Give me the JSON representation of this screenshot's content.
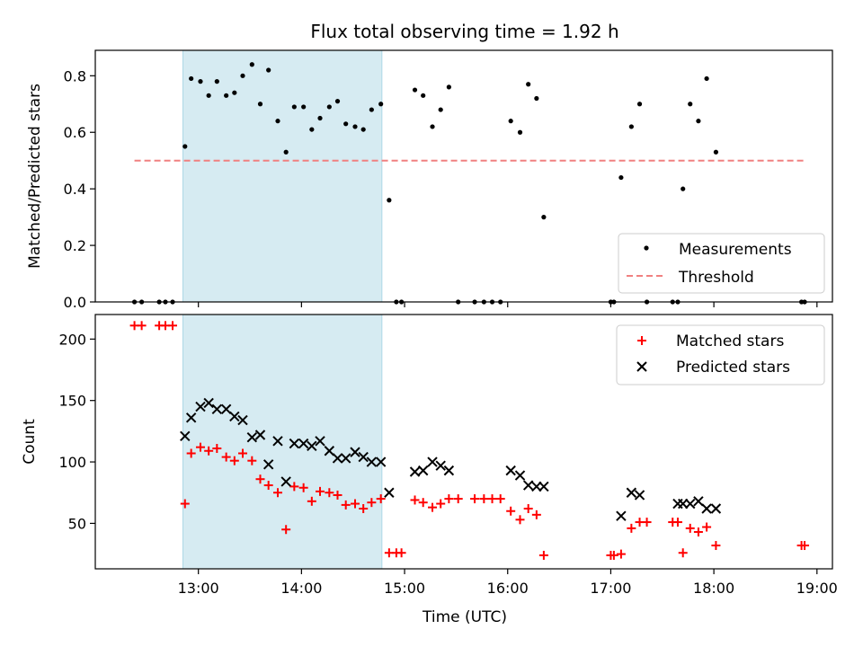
{
  "chart_data": [
    {
      "type": "scatter",
      "title": "Flux total observing time = 1.92 h",
      "xlabel": "",
      "ylabel": "Matched/Predicted stars",
      "ylim": [
        0,
        0.89
      ],
      "yticks": [
        "0.0",
        "0.2",
        "0.4",
        "0.6",
        "0.8"
      ],
      "xticks": [
        "13:00",
        "14:00",
        "15:00",
        "16:00",
        "17:00",
        "18:00",
        "19:00"
      ],
      "xlim_hours": [
        12.0,
        19.15
      ],
      "shaded_span_hours": [
        12.85,
        14.78
      ],
      "threshold": {
        "value": 0.5,
        "x_range_hours": [
          12.38,
          18.88
        ]
      },
      "legend": {
        "placement": "lower-right",
        "entries": [
          "Measurements",
          "Threshold"
        ]
      },
      "series": [
        {
          "name": "Measurements",
          "x": [
            12.38,
            12.45,
            12.62,
            12.68,
            12.75,
            12.87,
            12.93,
            13.02,
            13.1,
            13.18,
            13.27,
            13.35,
            13.43,
            13.52,
            13.6,
            13.68,
            13.77,
            13.85,
            13.93,
            14.02,
            14.1,
            14.18,
            14.27,
            14.35,
            14.43,
            14.52,
            14.6,
            14.68,
            14.77,
            14.85,
            14.92,
            14.97,
            15.1,
            15.18,
            15.27,
            15.35,
            15.43,
            15.52,
            15.68,
            15.77,
            15.85,
            15.93,
            16.03,
            16.12,
            16.2,
            16.28,
            16.35,
            17.0,
            17.03,
            17.1,
            17.2,
            17.28,
            17.35,
            17.6,
            17.65,
            17.7,
            17.77,
            17.85,
            17.93,
            18.02,
            18.85,
            18.88
          ],
          "y": [
            0.0,
            0.0,
            0.0,
            0.0,
            0.0,
            0.55,
            0.79,
            0.78,
            0.73,
            0.78,
            0.73,
            0.74,
            0.8,
            0.84,
            0.7,
            0.82,
            0.64,
            0.53,
            0.69,
            0.69,
            0.61,
            0.65,
            0.69,
            0.71,
            0.63,
            0.62,
            0.61,
            0.68,
            0.7,
            0.36,
            0.0,
            0.0,
            0.75,
            0.73,
            0.62,
            0.68,
            0.76,
            0.0,
            0.0,
            0.0,
            0.0,
            0.0,
            0.64,
            0.6,
            0.77,
            0.72,
            0.3,
            0.0,
            0.0,
            0.44,
            0.62,
            0.7,
            0.0,
            0.0,
            0.0,
            0.4,
            0.7,
            0.64,
            0.79,
            0.53,
            0.0,
            0.0
          ]
        }
      ]
    },
    {
      "type": "scatter",
      "xlabel": "Time (UTC)",
      "ylabel": "Count",
      "ylim": [
        13,
        220
      ],
      "yticks": [
        "50",
        "100",
        "150",
        "200"
      ],
      "xticks": [
        "13:00",
        "14:00",
        "15:00",
        "16:00",
        "17:00",
        "18:00",
        "19:00"
      ],
      "xlim_hours": [
        12.0,
        19.15
      ],
      "shaded_span_hours": [
        12.85,
        14.78
      ],
      "legend": {
        "placement": "top-right",
        "entries": [
          "Matched stars",
          "Predicted stars"
        ]
      },
      "series": [
        {
          "name": "Matched stars",
          "x": [
            12.38,
            12.45,
            12.62,
            12.68,
            12.75,
            12.87,
            12.93,
            13.02,
            13.1,
            13.18,
            13.27,
            13.35,
            13.43,
            13.52,
            13.6,
            13.68,
            13.77,
            13.85,
            13.93,
            14.02,
            14.1,
            14.18,
            14.27,
            14.35,
            14.43,
            14.52,
            14.6,
            14.68,
            14.77,
            14.85,
            14.92,
            14.97,
            15.1,
            15.18,
            15.27,
            15.35,
            15.43,
            15.52,
            15.68,
            15.77,
            15.85,
            15.93,
            16.03,
            16.12,
            16.2,
            16.28,
            16.35,
            17.0,
            17.03,
            17.1,
            17.2,
            17.28,
            17.35,
            17.6,
            17.65,
            17.7,
            17.77,
            17.85,
            17.93,
            18.02,
            18.85,
            18.88
          ],
          "y": [
            211,
            211,
            211,
            211,
            211,
            66,
            107,
            112,
            109,
            111,
            104,
            101,
            107,
            101,
            86,
            81,
            75,
            45,
            80,
            79,
            68,
            76,
            75,
            73,
            65,
            66,
            62,
            67,
            70,
            26,
            26,
            26,
            69,
            67,
            63,
            66,
            70,
            70,
            70,
            70,
            70,
            70,
            60,
            53,
            62,
            57,
            24,
            24,
            24,
            25,
            46,
            51,
            51,
            51,
            51,
            26,
            46,
            43,
            47,
            32,
            32,
            32
          ]
        },
        {
          "name": "Predicted stars",
          "x": [
            12.87,
            12.93,
            13.02,
            13.1,
            13.18,
            13.27,
            13.35,
            13.43,
            13.52,
            13.6,
            13.68,
            13.77,
            13.85,
            13.93,
            14.02,
            14.1,
            14.18,
            14.27,
            14.35,
            14.43,
            14.52,
            14.6,
            14.68,
            14.77,
            14.85,
            15.1,
            15.18,
            15.27,
            15.35,
            15.43,
            16.03,
            16.12,
            16.2,
            16.28,
            16.35,
            17.1,
            17.2,
            17.28,
            17.65,
            17.7,
            17.77,
            17.85,
            17.93,
            18.02
          ],
          "y": [
            121,
            136,
            145,
            148,
            143,
            143,
            137,
            134,
            120,
            122,
            98,
            117,
            84,
            115,
            115,
            113,
            117,
            109,
            103,
            103,
            108,
            104,
            100,
            100,
            75,
            92,
            93,
            100,
            97,
            93,
            93,
            89,
            81,
            80,
            80,
            56,
            75,
            73,
            66,
            66,
            66,
            68,
            62,
            62
          ]
        }
      ]
    }
  ],
  "colors": {
    "measurements": "#000000",
    "threshold": "#f08080",
    "matched": "#ff0000",
    "predicted": "#000000",
    "shade": "#add8e6"
  }
}
